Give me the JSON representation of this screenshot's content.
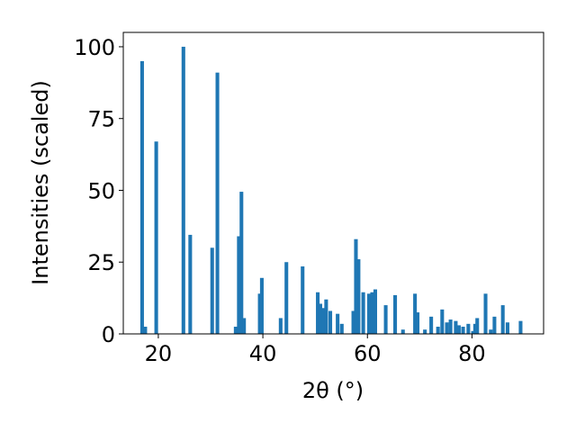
{
  "chart_data": {
    "type": "bar",
    "title": "",
    "xlabel": "2θ (°)",
    "ylabel": "Intensities (scaled)",
    "xlim": [
      13.3,
      93.7
    ],
    "ylim": [
      0,
      105
    ],
    "xticks": [
      20,
      40,
      60,
      80
    ],
    "yticks": [
      0,
      25,
      50,
      75,
      100
    ],
    "grid": false,
    "bar_color": "#1f77b4",
    "bar_width": 0.7,
    "x": [
      16.9,
      17.5,
      19.6,
      24.8,
      26.1,
      30.3,
      31.3,
      34.8,
      35.4,
      35.9,
      36.4,
      39.4,
      39.8,
      43.4,
      44.5,
      47.6,
      50.5,
      51.0,
      51.6,
      52.1,
      52.9,
      54.3,
      55.1,
      57.3,
      57.8,
      58.3,
      59.2,
      60.3,
      60.9,
      61.5,
      63.5,
      65.3,
      66.8,
      69.1,
      69.6,
      71.0,
      72.2,
      73.5,
      74.3,
      75.2,
      75.9,
      76.9,
      77.5,
      78.3,
      79.3,
      80.2,
      80.6,
      81.0,
      82.6,
      83.6,
      84.3,
      85.9,
      86.8,
      89.3
    ],
    "values": [
      95,
      2.5,
      67,
      100,
      34.5,
      30,
      91,
      2.5,
      34,
      49.5,
      5.5,
      14,
      19.5,
      5.5,
      25,
      23.5,
      14.5,
      10.5,
      9,
      12,
      8,
      7,
      3.5,
      8,
      33,
      26,
      14.5,
      14,
      14.5,
      15.5,
      10,
      13.5,
      1.5,
      14,
      7.5,
      1.5,
      6,
      2.5,
      8.5,
      4,
      5,
      4.5,
      3,
      2.5,
      3.5,
      1,
      3.5,
      5.5,
      14,
      1.5,
      6,
      10,
      4,
      4.5
    ]
  }
}
